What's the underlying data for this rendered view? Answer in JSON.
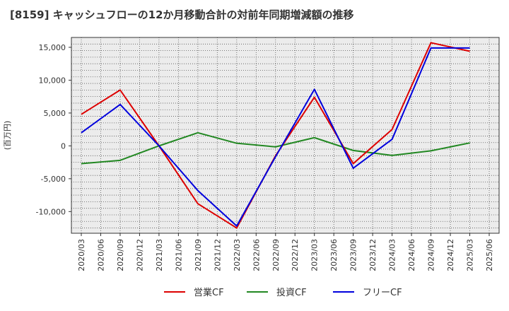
{
  "title": "[8159]  キャッシュフローの12か月移動合計の対前年同期増減額の推移",
  "chart_data": {
    "type": "line",
    "ylabel": "(百万円)",
    "ylim": [
      -13300,
      16500
    ],
    "yticks": [
      15000,
      10000,
      5000,
      0,
      -5000,
      -10000
    ],
    "ytick_labels": [
      "15,000",
      "10,000",
      "5,000",
      "0",
      "-5,000",
      "-10,000"
    ],
    "xticks": [
      "2020/03",
      "2020/06",
      "2020/09",
      "2020/12",
      "2021/03",
      "2021/06",
      "2021/09",
      "2021/12",
      "2022/03",
      "2022/06",
      "2022/09",
      "2022/12",
      "2023/03",
      "2023/06",
      "2023/09",
      "2023/12",
      "2024/03",
      "2024/06",
      "2024/09",
      "2024/12",
      "2025/03",
      "2025/06"
    ],
    "grid": true,
    "legend": "bottom",
    "series": [
      {
        "name": "営業CF",
        "color": "#dd0000",
        "x": [
          "2020/03",
          "2020/09",
          "2021/03",
          "2021/09",
          "2022/03",
          "2022/09",
          "2023/03",
          "2023/09",
          "2024/03",
          "2024/09",
          "2025/03"
        ],
        "values": [
          4800,
          8500,
          0,
          -8800,
          -12500,
          -1500,
          7400,
          -2700,
          2500,
          15700,
          14400
        ]
      },
      {
        "name": "投資CF",
        "color": "#228822",
        "x": [
          "2020/03",
          "2020/09",
          "2021/03",
          "2021/09",
          "2022/03",
          "2022/09",
          "2023/03",
          "2023/09",
          "2024/03",
          "2024/09",
          "2025/03"
        ],
        "values": [
          -2700,
          -2200,
          0,
          2000,
          400,
          -150,
          1250,
          -700,
          -1450,
          -750,
          450
        ]
      },
      {
        "name": "フリーCF",
        "color": "#0000dd",
        "x": [
          "2020/03",
          "2020/09",
          "2021/03",
          "2021/09",
          "2022/03",
          "2022/09",
          "2023/03",
          "2023/09",
          "2024/03",
          "2024/09",
          "2025/03"
        ],
        "values": [
          2000,
          6300,
          0,
          -6800,
          -12200,
          -1650,
          8600,
          -3400,
          1000,
          14900,
          14900
        ]
      }
    ]
  }
}
